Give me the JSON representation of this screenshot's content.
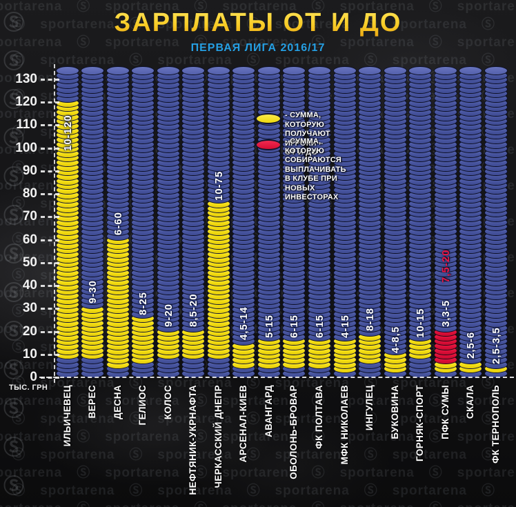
{
  "header": {
    "title": "ЗАРПЛАТЫ ОТ И ДО",
    "subtitle": "ПЕРВАЯ ЛИГА 2016/17"
  },
  "watermark": {
    "brand": "sportarena",
    "logo_glyph": "Ⓢ"
  },
  "legend": {
    "items": [
      {
        "color": "#f3dd12",
        "lines": [
          "- СУММА, КОТОРУЮ",
          "ПОЛУЧАЮТ ИГРОКИ – ОТ И ДО"
        ]
      },
      {
        "color": "#dd0e38",
        "lines": [
          "- СУММА, КОТОРУЮ СОБИРАЮТСЯ",
          "ВЫПЛАЧИВАТЬ В КЛУБЕ ПРИ НОВЫХ ИНВЕСТОРАХ"
        ]
      }
    ]
  },
  "axis": {
    "unit_label": "ТЫС. ГРН",
    "ticks": [
      0,
      10,
      20,
      30,
      40,
      50,
      60,
      70,
      80,
      90,
      100,
      110,
      120,
      130
    ]
  },
  "chart_data": {
    "type": "bar",
    "title": "ЗАРПЛАТЫ ОТ И ДО",
    "subtitle": "ПЕРВАЯ ЛИГА 2016/17",
    "ylabel": "ТЫС. ГРН",
    "ylim": [
      0,
      135
    ],
    "stack_top_value": 134.5,
    "grid": false,
    "legend_position": "top-right",
    "categories": [
      "ИЛЬИЧЕВЕЦ",
      "ВЕРЕС",
      "ДЕСНА",
      "ГЕЛИОС",
      "КОЛОС",
      "НЕФТЯНИК-УКРНАФТА",
      "ЧЕРКАССКИЙ ДНЕПР",
      "АРСЕНАЛ-КИЕВ",
      "АВАНГАРД",
      "ОБОЛОНЬ-БРОВАР",
      "ФК ПОЛТАВА",
      "МФК НИКОЛАЕВ",
      "ИНГУЛЕЦ",
      "БУКОВИНА",
      "ГОРНЯК-СПОРТ",
      "ПФК СУМЫ",
      "СКАЛА",
      "ФК ТЕРНОПОЛЬ"
    ],
    "teams": [
      {
        "name": "ИЛЬИЧЕВЕЦ",
        "salary_min": 10,
        "salary_max": 120,
        "range_label": "10-120",
        "label_inside": true
      },
      {
        "name": "ВЕРЕС",
        "salary_min": 9,
        "salary_max": 30,
        "range_label": "9-30"
      },
      {
        "name": "ДЕСНА",
        "salary_min": 6,
        "salary_max": 60,
        "range_label": "6-60"
      },
      {
        "name": "ГЕЛИОС",
        "salary_min": 8,
        "salary_max": 25,
        "range_label": "8-25"
      },
      {
        "name": "КОЛОС",
        "salary_min": 9,
        "salary_max": 20,
        "range_label": "9-20"
      },
      {
        "name": "НЕФТЯНИК-УКРНАФТА",
        "salary_min": 8.5,
        "salary_max": 20,
        "range_label": "8,5-20"
      },
      {
        "name": "ЧЕРКАССКИЙ ДНЕПР",
        "salary_min": 10,
        "salary_max": 75,
        "range_label": "10-75"
      },
      {
        "name": "АРСЕНАЛ-КИЕВ",
        "salary_min": 4.5,
        "salary_max": 14,
        "range_label": "4,5-14"
      },
      {
        "name": "АВАНГАРД",
        "salary_min": 5,
        "salary_max": 15,
        "range_label": "5-15"
      },
      {
        "name": "ОБОЛОНЬ-БРОВАР",
        "salary_min": 6,
        "salary_max": 15,
        "range_label": "6-15"
      },
      {
        "name": "ФК ПОЛТАВА",
        "salary_min": 6,
        "salary_max": 15,
        "range_label": "6-15"
      },
      {
        "name": "МФК НИКОЛАЕВ",
        "salary_min": 4,
        "salary_max": 15,
        "range_label": "4-15"
      },
      {
        "name": "ИНГУЛЕЦ",
        "salary_min": 8,
        "salary_max": 18,
        "range_label": "8-18"
      },
      {
        "name": "БУКОВИНА",
        "salary_min": 4,
        "salary_max": 8.5,
        "range_label": "4-8,5"
      },
      {
        "name": "ГОРНЯК-СПОРТ",
        "salary_min": 10,
        "salary_max": 15,
        "range_label": "10-15"
      },
      {
        "name": "ПФК СУМЫ",
        "salary_min": 3.3,
        "salary_max": 5,
        "range_label": "3,3-5",
        "investor_min": 7.5,
        "investor_max": 20,
        "investor_label": "7,5-20"
      },
      {
        "name": "СКАЛА",
        "salary_min": 2.5,
        "salary_max": 6,
        "range_label": "2,5-6"
      },
      {
        "name": "ФК ТЕРНОПОЛЬ",
        "salary_min": 2.5,
        "salary_max": 3.5,
        "range_label": "2,5-3,5"
      }
    ],
    "colors": {
      "chip_blue": "#47549e",
      "chip_yellow": "#f3dd12",
      "chip_red": "#dd0e38",
      "title_gold": "#f8cd27",
      "subtitle_blue": "#259fe3",
      "axis_text": "#f2f2f2",
      "investor_label_text": "#ea1748"
    }
  }
}
